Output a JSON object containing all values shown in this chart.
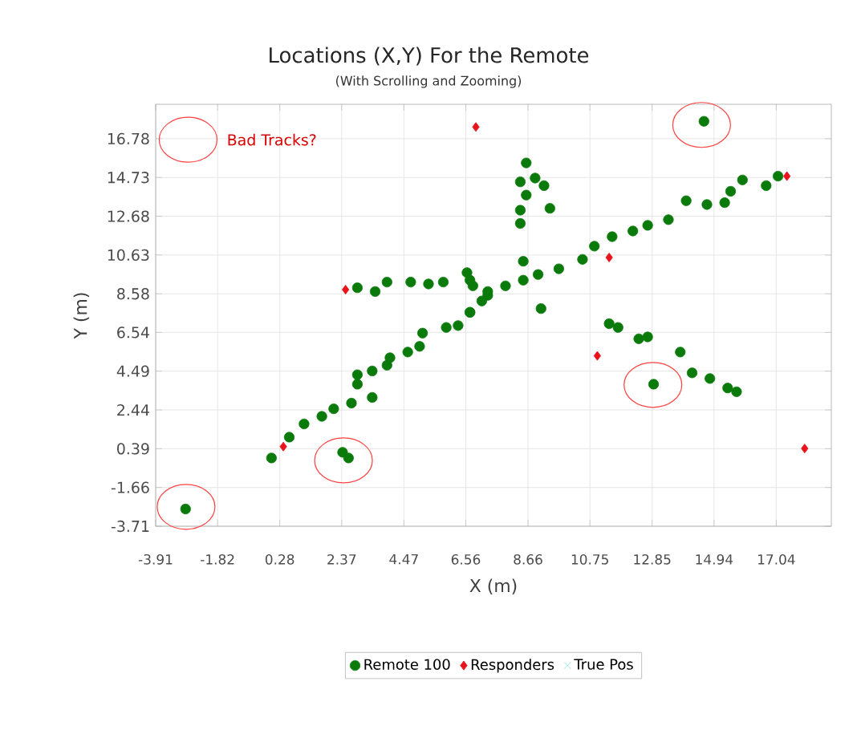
{
  "chart_data": {
    "type": "scatter",
    "title": "Locations (X,Y) For the Remote",
    "subtitle": "(With Scrolling and Zooming)",
    "xlabel": "X (m)",
    "ylabel": "Y (m)",
    "xlim": [
      -3.91,
      18.9
    ],
    "ylim": [
      -3.71,
      18.6
    ],
    "xticks": [
      -3.91,
      -1.82,
      0.28,
      2.37,
      4.47,
      6.56,
      8.66,
      10.75,
      12.85,
      14.94,
      17.04
    ],
    "yticks": [
      -3.71,
      -1.66,
      0.39,
      2.44,
      4.49,
      6.54,
      8.58,
      10.63,
      12.68,
      14.73,
      16.78
    ],
    "grid": true,
    "legend": "bottom",
    "annotations": [
      "Bad Tracks?"
    ],
    "series": [
      {
        "name": "Remote 100",
        "color": "#0a7a0a",
        "marker": "circle",
        "x": [
          -2.9,
          2.4,
          2.6,
          0.0,
          0.6,
          1.1,
          1.7,
          2.1,
          2.7,
          3.4,
          2.9,
          2.9,
          3.4,
          3.9,
          4.0,
          4.6,
          5.0,
          5.1,
          5.9,
          6.3,
          6.7,
          7.1,
          2.9,
          3.5,
          3.9,
          4.7,
          5.3,
          5.8,
          6.6,
          6.8,
          7.3,
          6.7,
          6.7,
          7.3,
          7.9,
          8.5,
          8.5,
          9.0,
          9.1,
          9.7,
          10.5,
          10.9,
          11.5,
          12.2,
          12.7,
          13.4,
          14.0,
          14.7,
          15.3,
          15.5,
          15.9,
          16.7,
          17.1,
          8.6,
          8.9,
          8.4,
          9.2,
          8.6,
          9.4,
          8.4,
          8.4,
          11.4,
          11.7,
          12.4,
          12.7,
          12.9,
          13.8,
          14.2,
          14.8,
          15.4,
          15.7,
          14.6
        ],
        "values": [
          -2.8,
          0.2,
          -0.1,
          -0.1,
          1.0,
          1.7,
          2.1,
          2.5,
          2.8,
          3.1,
          3.8,
          4.3,
          4.5,
          4.8,
          5.2,
          5.5,
          5.8,
          6.5,
          6.8,
          6.9,
          7.6,
          8.2,
          8.9,
          8.7,
          9.2,
          9.2,
          9.1,
          9.2,
          9.7,
          9.0,
          8.7,
          9.3,
          7.6,
          8.5,
          9.0,
          9.3,
          10.3,
          9.6,
          7.8,
          9.9,
          10.4,
          11.1,
          11.6,
          11.9,
          12.2,
          12.5,
          13.5,
          13.3,
          13.4,
          14.0,
          14.6,
          14.3,
          14.8,
          15.5,
          14.7,
          14.5,
          14.3,
          13.8,
          13.1,
          13.0,
          12.3,
          7.0,
          6.8,
          6.2,
          6.3,
          3.8,
          5.5,
          4.4,
          4.1,
          3.6,
          3.4,
          17.7
        ]
      },
      {
        "name": "Responders",
        "color": "#e8131b",
        "marker": "diamond",
        "x": [
          6.9,
          2.5,
          0.4,
          11.4,
          11.0,
          17.4,
          18.0
        ],
        "values": [
          17.4,
          8.8,
          0.5,
          10.5,
          5.3,
          14.8,
          0.4
        ]
      },
      {
        "name": "True Pos",
        "color": "#7fe3f0",
        "marker": "cross"
      }
    ]
  }
}
